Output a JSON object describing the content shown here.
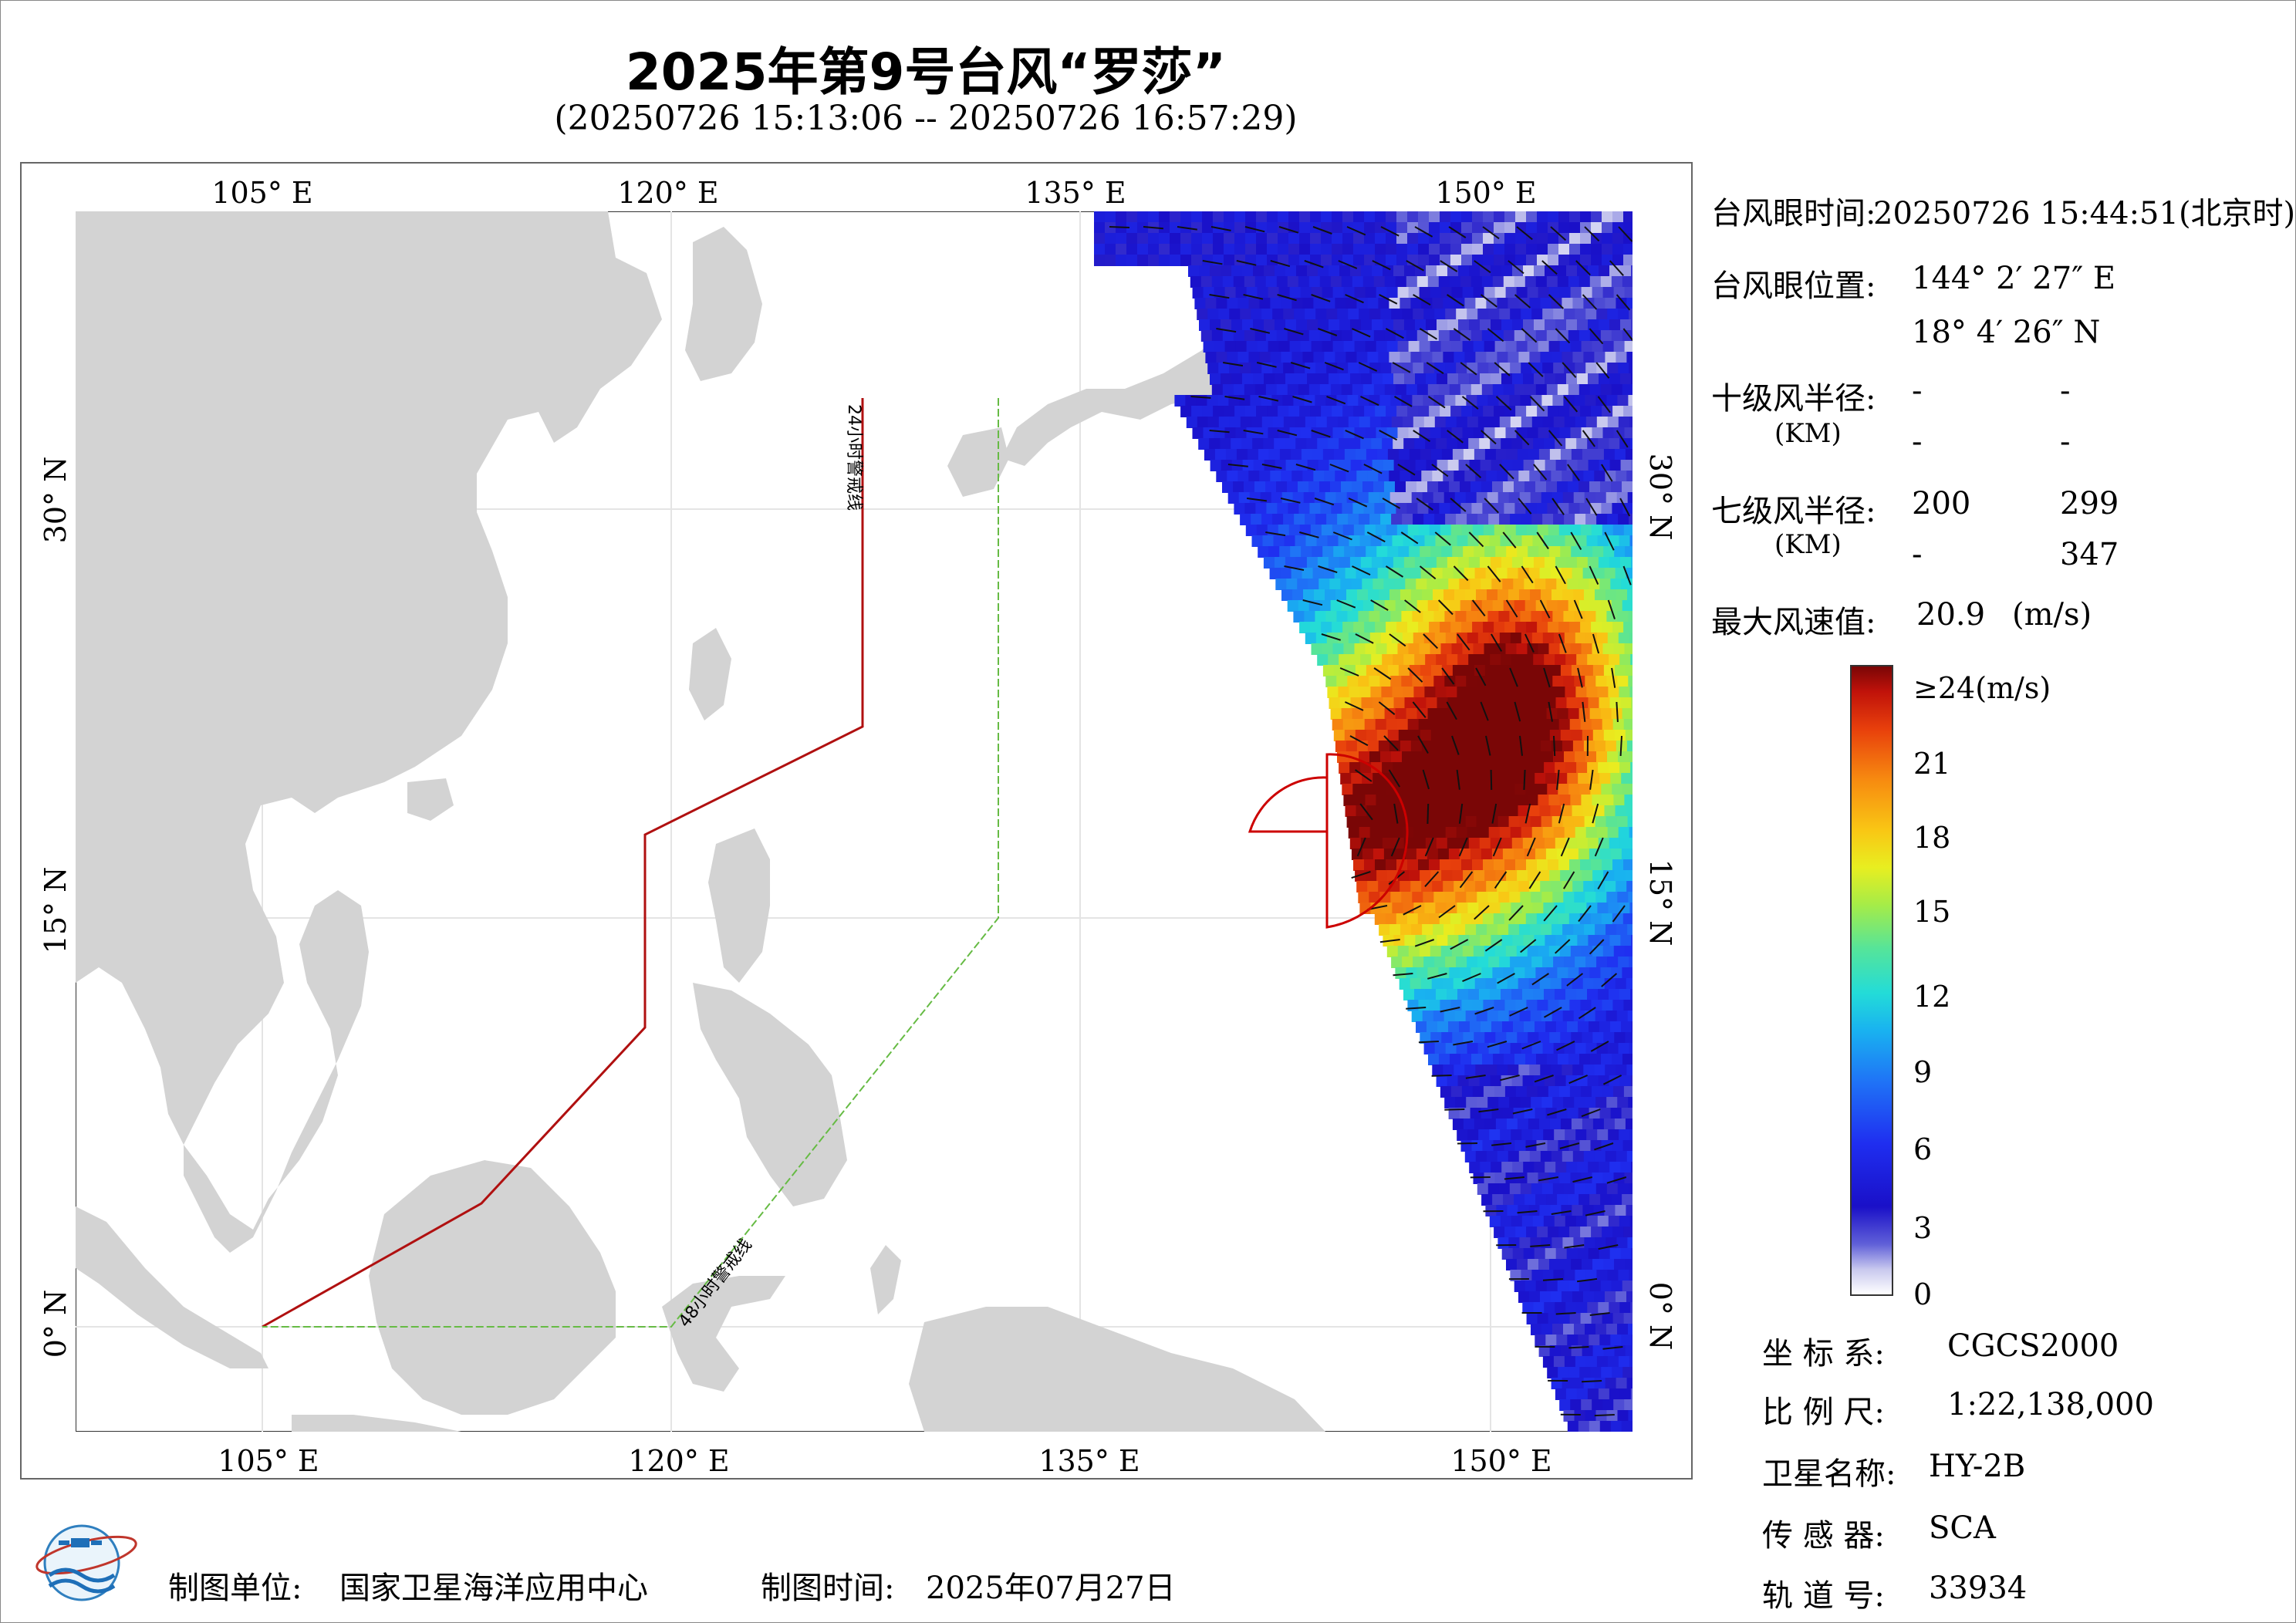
{
  "title": "2025年第9号台风“罗莎”",
  "subtitle": "(20250726 15:13:06 -- 20250726 16:57:29)",
  "map": {
    "lon_ticks_top": [
      "105° E",
      "120° E",
      "135° E",
      "150° E"
    ],
    "lon_ticks_bottom": [
      "105° E",
      "120° E",
      "135° E",
      "150° E"
    ],
    "lat_ticks_left": [
      "30° N",
      "15° N",
      "0° N"
    ],
    "lat_ticks_right": [
      "30° N",
      "15° N",
      "0° N"
    ],
    "label_24h": "24小时警戒线",
    "label_48h": "48小时警戒线",
    "colors": {
      "land": "#d3d3d3",
      "warning_24h": "#b01010",
      "warning_48h": "#66bb44",
      "wind_radius": "#cc0000"
    }
  },
  "info": {
    "eye_time_label": "台风眼时间:",
    "eye_time_value": "20250726 15:44:51(北京时)",
    "eye_pos_label": "台风眼位置:",
    "eye_lon": "144° 2′ 27″ E",
    "eye_lat": "18° 4′ 26″ N",
    "r10_label": "十级风半径:",
    "r10_unit": "(KM)",
    "r10_values": [
      "-",
      "-",
      "-",
      "-"
    ],
    "r7_label": "七级风半径:",
    "r7_unit": "(KM)",
    "r7_values": [
      "200",
      "299",
      "-",
      "347"
    ],
    "max_wind_label": "最大风速值:",
    "max_wind_value": "20.9",
    "max_wind_unit": "(m/s)"
  },
  "colorbar": {
    "ticks": [
      "≥24(m/s)",
      "21",
      "18",
      "15",
      "12",
      "9",
      "6",
      "3",
      "0"
    ]
  },
  "meta": {
    "crs_label": "坐 标 系:",
    "crs_value": "CGCS2000",
    "scale_label": "比 例 尺:",
    "scale_value": "1:22,138,000",
    "sat_label": "卫星名称:",
    "sat_value": "HY-2B",
    "sensor_label": "传 感 器:",
    "sensor_value": "SCA",
    "orbit_label": "轨 道 号:",
    "orbit_value": "33934"
  },
  "footer": {
    "maker_label": "制图单位:",
    "maker_value": "国家卫星海洋应用中心",
    "time_label": "制图时间:",
    "time_value": "2025年07月27日"
  }
}
